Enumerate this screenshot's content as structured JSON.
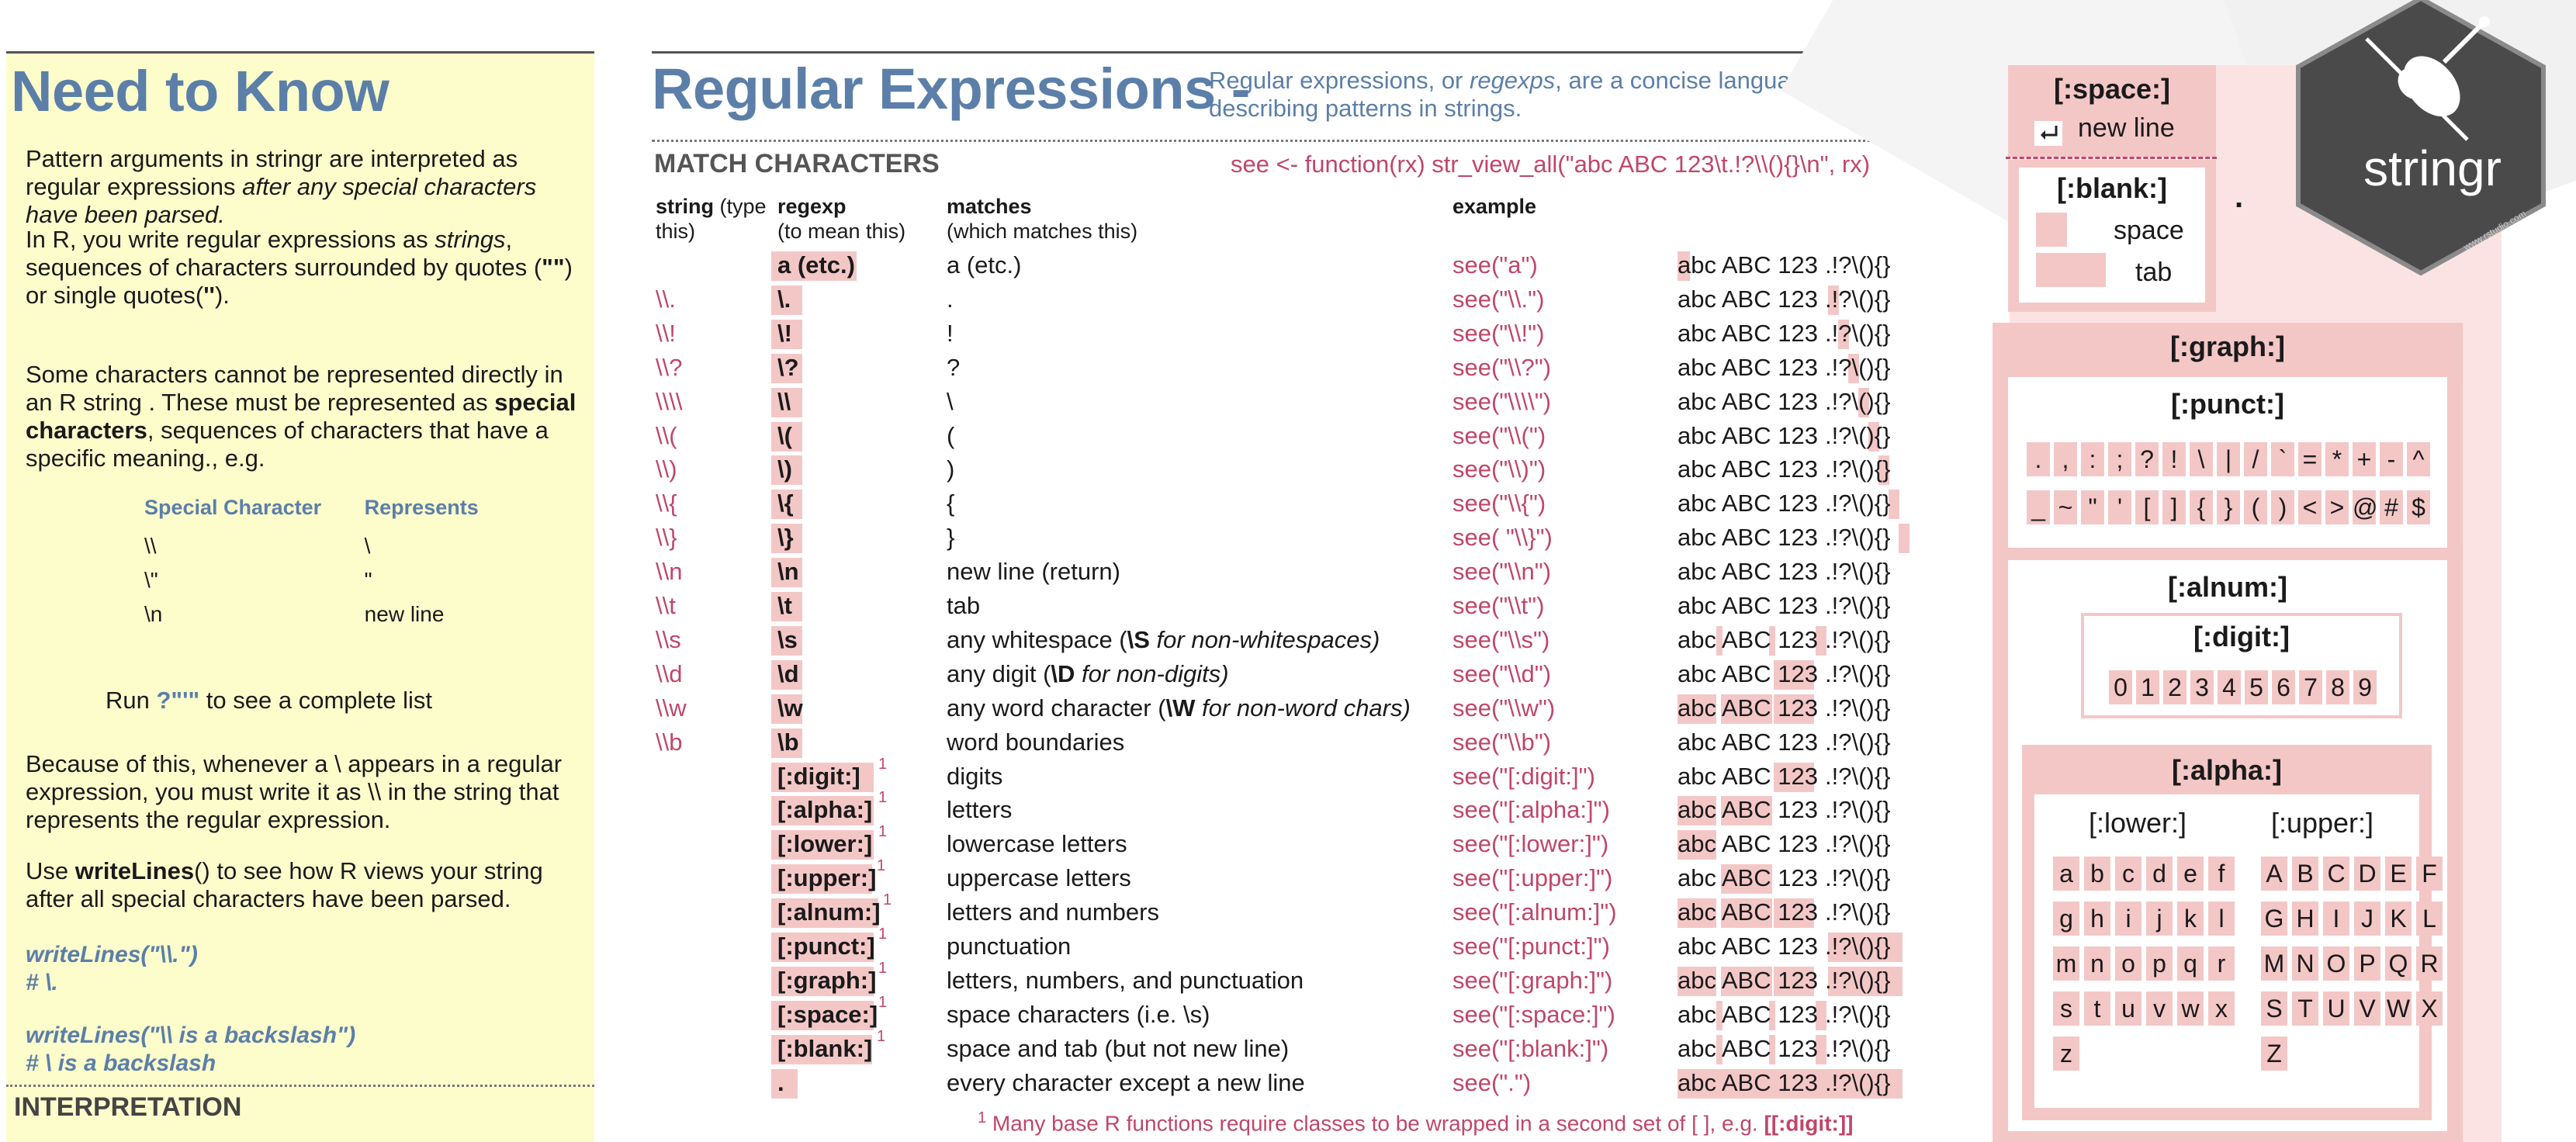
{
  "need_to_know": {
    "title": "Need to Know",
    "p1a": "Pattern arguments in stringr are interpreted as regular expressions ",
    "p1b": "after any special characters have been parsed.",
    "p2a": "In R, you write regular expressions as ",
    "p2b": "strings",
    "p2c": ", sequences of characters surrounded by quotes (",
    "p2d": "\"\"",
    "p2e": ") or single quotes(",
    "p2f": "''",
    "p2g": ").",
    "p3a": "Some characters cannot be represented directly in an R string . These must be represented as ",
    "p3b": "special characters",
    "p3c": ", sequences of characters that have a specific meaning., e.g.",
    "table_head_char": "Special Character",
    "table_head_rep": "Represents",
    "table_rows": [
      {
        "char": "\\\\",
        "rep": "\\"
      },
      {
        "char": "\\\"",
        "rep": "\""
      },
      {
        "char": "\\n",
        "rep": "new line"
      }
    ],
    "run_pre": "Run ",
    "run_code": "?\"'\"",
    "run_post": " to see a complete list",
    "p4": "Because of this, whenever a \\ appears in a regular expression, you must write it as \\\\ in the string that represents the regular expression.",
    "p5a": "Use ",
    "p5b": "writeLines",
    "p5c": "() to see how R views your string after all special characters have been parsed.",
    "ex1_code": "writeLines(\"\\\\.\")",
    "ex1_out": "# \\.",
    "ex2_code": "writeLines(\"\\\\ is a backslash\")",
    "ex2_out": "# \\ is a backslash",
    "interpretation": "INTERPRETATION"
  },
  "regex": {
    "title": "Regular Expressions -",
    "subtitle_a": "Regular expressions, or ",
    "subtitle_b": "regexps",
    "subtitle_c": ", are a concise language for describing patterns in strings.",
    "section": "MATCH CHARACTERS",
    "see_def": "see <- function(rx) str_view_all(\"abc ABC 123\\t.!?\\\\(){}\\n\", rx)",
    "col_string_a": "string",
    "col_string_b": " (type",
    "col_string_c": "this)",
    "col_regexp_a": "regexp",
    "col_regexp_b": "(to mean this)",
    "col_matches_a": "matches",
    "col_matches_b": "(which matches this)",
    "col_example": "example",
    "ex_text1": "abc ABC 123",
    "ex_text2": ".!?\\(){}",
    "rows": [
      {
        "str": "",
        "re": "a (etc.)",
        "sup": "",
        "match": "a (etc.)",
        "see": "see(\"a\")"
      },
      {
        "str": "\\\\.",
        "re": "\\.",
        "sup": "",
        "match": ".",
        "see": "see(\"\\\\.\")"
      },
      {
        "str": "\\\\!",
        "re": "\\!",
        "sup": "",
        "match": "!",
        "see": "see(\"\\\\!\")"
      },
      {
        "str": "\\\\?",
        "re": "\\?",
        "sup": "",
        "match": "?",
        "see": "see(\"\\\\?\")"
      },
      {
        "str": "\\\\\\\\",
        "re": "\\\\",
        "sup": "",
        "match": "\\",
        "see": "see(\"\\\\\\\\\")"
      },
      {
        "str": "\\\\(",
        "re": "\\(",
        "sup": "",
        "match": "(",
        "see": "see(\"\\\\(\")"
      },
      {
        "str": "\\\\)",
        "re": "\\)",
        "sup": "",
        "match": ")",
        "see": "see(\"\\\\)\")"
      },
      {
        "str": "\\\\{",
        "re": "\\{",
        "sup": "",
        "match": "{",
        "see": "see(\"\\\\{\")"
      },
      {
        "str": "\\\\}",
        "re": "\\}",
        "sup": "",
        "match": "}",
        "see": "see( \"\\\\}\")"
      },
      {
        "str": "\\\\n",
        "re": "\\n",
        "sup": "",
        "match": "new line (return)",
        "see": "see(\"\\\\n\")"
      },
      {
        "str": "\\\\t",
        "re": "\\t",
        "sup": "",
        "match": "tab",
        "see": "see(\"\\\\t\")"
      },
      {
        "str": "\\\\s",
        "re": "\\s",
        "sup": "",
        "match": "any whitespace",
        "match_note_bold": "\\S",
        "match_note": " for non-whitespaces)",
        "see": "see(\"\\\\s\")"
      },
      {
        "str": "\\\\d",
        "re": "\\d",
        "sup": "",
        "match": "any digit",
        "match_note_bold": "\\D",
        "match_note": " for non-digits)",
        "see": "see(\"\\\\d\")"
      },
      {
        "str": "\\\\w",
        "re": "\\w",
        "sup": "",
        "match": "any word character",
        "match_note_bold": "\\W",
        "match_note": " for non-word chars)",
        "see": "see(\"\\\\w\")"
      },
      {
        "str": "\\\\b",
        "re": "\\b",
        "sup": "",
        "match": "word boundaries",
        "see": "see(\"\\\\b\")"
      },
      {
        "str": "",
        "re": "[:digit:]",
        "sup": "1",
        "match": "digits",
        "see": "see(\"[:digit:]\")"
      },
      {
        "str": "",
        "re": "[:alpha:]",
        "sup": "1",
        "match": "letters",
        "see": "see(\"[:alpha:]\")"
      },
      {
        "str": "",
        "re": "[:lower:]",
        "sup": "1",
        "match": "lowercase letters",
        "see": "see(\"[:lower:]\")"
      },
      {
        "str": "",
        "re": "[:upper:]",
        "sup": "1",
        "match": "uppercase letters",
        "see": "see(\"[:upper:]\")"
      },
      {
        "str": "",
        "re": "[:alnum:]",
        "sup": "1",
        "match": "letters and numbers",
        "see": "see(\"[:alnum:]\")"
      },
      {
        "str": "",
        "re": "[:punct:]",
        "sup": "1",
        "match": "punctuation",
        "see": "see(\"[:punct:]\")"
      },
      {
        "str": "",
        "re": "[:graph:]",
        "sup": "1",
        "match": "letters, numbers, and punctuation",
        "see": "see(\"[:graph:]\")"
      },
      {
        "str": "",
        "re": "[:space:]",
        "sup": "1",
        "match": "space characters (i.e. \\s)",
        "see": "see(\"[:space:]\")"
      },
      {
        "str": "",
        "re": "[:blank:]",
        "sup": "1",
        "match": "space and tab (but not new line)",
        "see": "see(\"[:blank:]\")"
      },
      {
        "str": "",
        "re": ".",
        "sup": "",
        "match": "every character except a new line",
        "see": "see(\".\")"
      }
    ],
    "footnote_sup": "1",
    "footnote_text": " Many base R functions require classes to be wrapped in a second set of [ ], e.g. ",
    "footnote_code": "[[:digit:]]"
  },
  "classes": {
    "space": "[:space:]",
    "newline": "new line",
    "blank": "[:blank:]",
    "space_label": "space",
    "tab_label": "tab",
    "dot": ".",
    "graph": "[:graph:]",
    "punct": "[:punct:]",
    "punct_row1": [
      ".",
      ",",
      ":",
      ";",
      "?",
      "!",
      "\\",
      "|",
      "/",
      "`",
      "=",
      "*",
      "+",
      "-",
      "^"
    ],
    "punct_row2": [
      "_",
      "~",
      "\"",
      "'",
      "[",
      "]",
      "{",
      "}",
      "(",
      ")",
      "<",
      ">",
      "@",
      "#",
      "$"
    ],
    "alnum": "[:alnum:]",
    "digit": "[:digit:]",
    "digits": [
      "0",
      "1",
      "2",
      "3",
      "4",
      "5",
      "6",
      "7",
      "8",
      "9"
    ],
    "alpha": "[:alpha:]",
    "lower": "[:lower:]",
    "upper": "[:upper:]",
    "lower_rows": [
      [
        "a",
        "b",
        "c",
        "d",
        "e",
        "f"
      ],
      [
        "g",
        "h",
        "i",
        "j",
        "k",
        "l"
      ],
      [
        "m",
        "n",
        "o",
        "p",
        "q",
        "r"
      ],
      [
        "s",
        "t",
        "u",
        "v",
        "w",
        "x"
      ],
      [
        "z"
      ]
    ],
    "upper_rows": [
      [
        "A",
        "B",
        "C",
        "D",
        "E",
        "F"
      ],
      [
        "G",
        "H",
        "I",
        "J",
        "K",
        "L"
      ],
      [
        "M",
        "N",
        "O",
        "P",
        "Q",
        "R"
      ],
      [
        "S",
        "T",
        "U",
        "V",
        "W",
        "X"
      ],
      [
        "Z"
      ]
    ]
  },
  "logo": {
    "text": "stringr",
    "url": "www.rstudio.com",
    "icon": "violin-icon"
  },
  "colors": {
    "accent_blue": "#5b7fa8",
    "accent_pink": "#c0466a",
    "highlight": "#f4c7c7",
    "note_bg": "#fdfdcc",
    "logo_bg": "#4a4a4a"
  }
}
